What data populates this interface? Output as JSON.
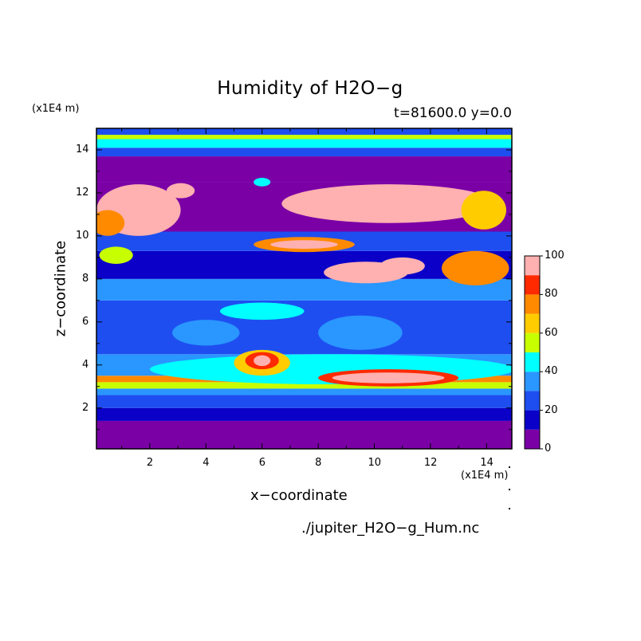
{
  "chart_data": {
    "type": "heatmap",
    "title": "Humidity of H2O−g",
    "subtitle": "t=81600.0 y=0.0",
    "xlabel": "x−coordinate",
    "ylabel": "z−coordinate",
    "x_unit": "(x1E4 m)",
    "y_unit": "(x1E4 m)",
    "source": "./jupiter_H2O−g_Hum.nc",
    "xlim": [
      0.1,
      14.9
    ],
    "ylim": [
      0.1,
      15.0
    ],
    "x_ticks": [
      2,
      4,
      6,
      8,
      10,
      12,
      14
    ],
    "y_ticks": [
      2,
      4,
      6,
      8,
      10,
      12,
      14
    ],
    "colorbar": {
      "ticks": [
        0,
        20,
        40,
        60,
        80,
        100
      ],
      "levels": [
        0,
        10,
        20,
        30,
        40,
        50,
        60,
        70,
        80,
        90,
        100
      ],
      "colors": [
        "#7a00a6",
        "#0a00c8",
        "#1e4ef0",
        "#2a96ff",
        "#00ffff",
        "#c8ff00",
        "#ffcc00",
        "#ff8a00",
        "#ff2a00",
        "#ffb0b0"
      ]
    },
    "bands": [
      {
        "z": [
          0.1,
          1.4
        ],
        "level": 0
      },
      {
        "z": [
          1.4,
          2.0
        ],
        "level": 1
      },
      {
        "z": [
          2.0,
          2.6
        ],
        "level": 2
      },
      {
        "z": [
          2.6,
          2.9
        ],
        "level": 3
      },
      {
        "z": [
          2.9,
          3.2
        ],
        "level": 5
      },
      {
        "z": [
          3.2,
          3.5
        ],
        "level": 7
      },
      {
        "z": [
          3.5,
          4.5
        ],
        "level": 3
      },
      {
        "z": [
          4.5,
          7.0
        ],
        "level": 2
      },
      {
        "z": [
          7.0,
          8.0
        ],
        "level": 3
      },
      {
        "z": [
          8.0,
          9.3
        ],
        "level": 1
      },
      {
        "z": [
          9.3,
          10.2
        ],
        "level": 2
      },
      {
        "z": [
          10.2,
          12.5
        ],
        "level": 0
      },
      {
        "z": [
          12.5,
          13.7
        ],
        "level": 0
      },
      {
        "z": [
          13.7,
          14.1
        ],
        "level": 2
      },
      {
        "z": [
          14.1,
          14.5
        ],
        "level": 4
      },
      {
        "z": [
          14.5,
          14.7
        ],
        "level": 5
      },
      {
        "z": [
          14.7,
          15.0
        ],
        "level": 2
      }
    ],
    "blobs": [
      {
        "x": 1.6,
        "z": 11.2,
        "rx": 1.5,
        "rz": 1.2,
        "level": 9
      },
      {
        "x": 0.5,
        "z": 10.6,
        "rx": 0.6,
        "rz": 0.6,
        "level": 7
      },
      {
        "x": 3.1,
        "z": 12.1,
        "rx": 0.5,
        "rz": 0.35,
        "level": 9
      },
      {
        "x": 10.5,
        "z": 11.5,
        "rx": 3.8,
        "rz": 0.9,
        "level": 9
      },
      {
        "x": 13.9,
        "z": 11.2,
        "rx": 0.8,
        "rz": 0.9,
        "level": 6
      },
      {
        "x": 6.0,
        "z": 12.5,
        "rx": 0.3,
        "rz": 0.2,
        "level": 4
      },
      {
        "x": 7.5,
        "z": 9.6,
        "rx": 1.8,
        "rz": 0.35,
        "level": 7
      },
      {
        "x": 7.5,
        "z": 9.6,
        "rx": 1.2,
        "rz": 0.2,
        "level": 9
      },
      {
        "x": 9.7,
        "z": 8.3,
        "rx": 1.5,
        "rz": 0.5,
        "level": 9
      },
      {
        "x": 11.0,
        "z": 8.6,
        "rx": 0.8,
        "rz": 0.4,
        "level": 9
      },
      {
        "x": 13.6,
        "z": 8.5,
        "rx": 1.2,
        "rz": 0.8,
        "level": 7
      },
      {
        "x": 0.8,
        "z": 9.1,
        "rx": 0.6,
        "rz": 0.4,
        "level": 5
      },
      {
        "x": 6.0,
        "z": 6.5,
        "rx": 1.5,
        "rz": 0.4,
        "level": 4
      },
      {
        "x": 4.0,
        "z": 5.5,
        "rx": 1.2,
        "rz": 0.6,
        "level": 3
      },
      {
        "x": 9.5,
        "z": 5.5,
        "rx": 1.5,
        "rz": 0.8,
        "level": 3
      },
      {
        "x": 8.5,
        "z": 3.8,
        "rx": 6.5,
        "rz": 0.7,
        "level": 4
      },
      {
        "x": 6.0,
        "z": 4.1,
        "rx": 1.0,
        "rz": 0.6,
        "level": 6
      },
      {
        "x": 6.0,
        "z": 4.2,
        "rx": 0.6,
        "rz": 0.4,
        "level": 8
      },
      {
        "x": 6.0,
        "z": 4.2,
        "rx": 0.3,
        "rz": 0.25,
        "level": 9
      },
      {
        "x": 10.5,
        "z": 3.4,
        "rx": 2.5,
        "rz": 0.4,
        "level": 8
      },
      {
        "x": 10.5,
        "z": 3.4,
        "rx": 2.0,
        "rz": 0.25,
        "level": 9
      }
    ]
  }
}
